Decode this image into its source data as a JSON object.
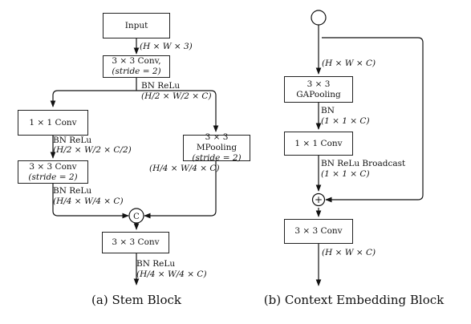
{
  "stem": {
    "input_label": "Input",
    "input_dims": "(H × W × 3)",
    "conv1_line1": "3 × 3 Conv,",
    "conv1_line2": "(stride = 2)",
    "conv1_act": "BN ReLu",
    "conv1_dims": "(H/2 × W/2 × C)",
    "left_conv1x1": "1 × 1 Conv",
    "left_act": "BN ReLu",
    "left_dims": "(H/2 × W/2 × C/2)",
    "left_conv3_line1": "3 × 3 Conv",
    "left_conv3_line2": "(stride = 2)",
    "left_conv3_act": "BN ReLu",
    "left_conv3_dims": "(H/4 × W/4 × C)",
    "pool_line1": "3 × 3 MPooling",
    "pool_line2": "(stride = 2)",
    "pool_dims": "(H/4 × W/4 × C)",
    "concat_symbol": "C",
    "final_conv": "3 × 3 Conv",
    "final_act": "BN ReLu",
    "final_dims": "(H/4 × W/4 × C)",
    "caption": "(a) Stem Block"
  },
  "ce": {
    "input_dims": "(H × W × C)",
    "gap": "3 × 3 GAPooling",
    "gap_act": "BN",
    "gap_dims": "(1 × 1 × C)",
    "conv1x1": "1 × 1 Conv",
    "conv_act": "BN ReLu Broadcast",
    "conv_dims": "(1 × 1 × C)",
    "add_symbol": "+",
    "conv3": "3 × 3 Conv",
    "out_dims": "(H × W × C)",
    "caption": "(b) Context Embedding Block"
  }
}
